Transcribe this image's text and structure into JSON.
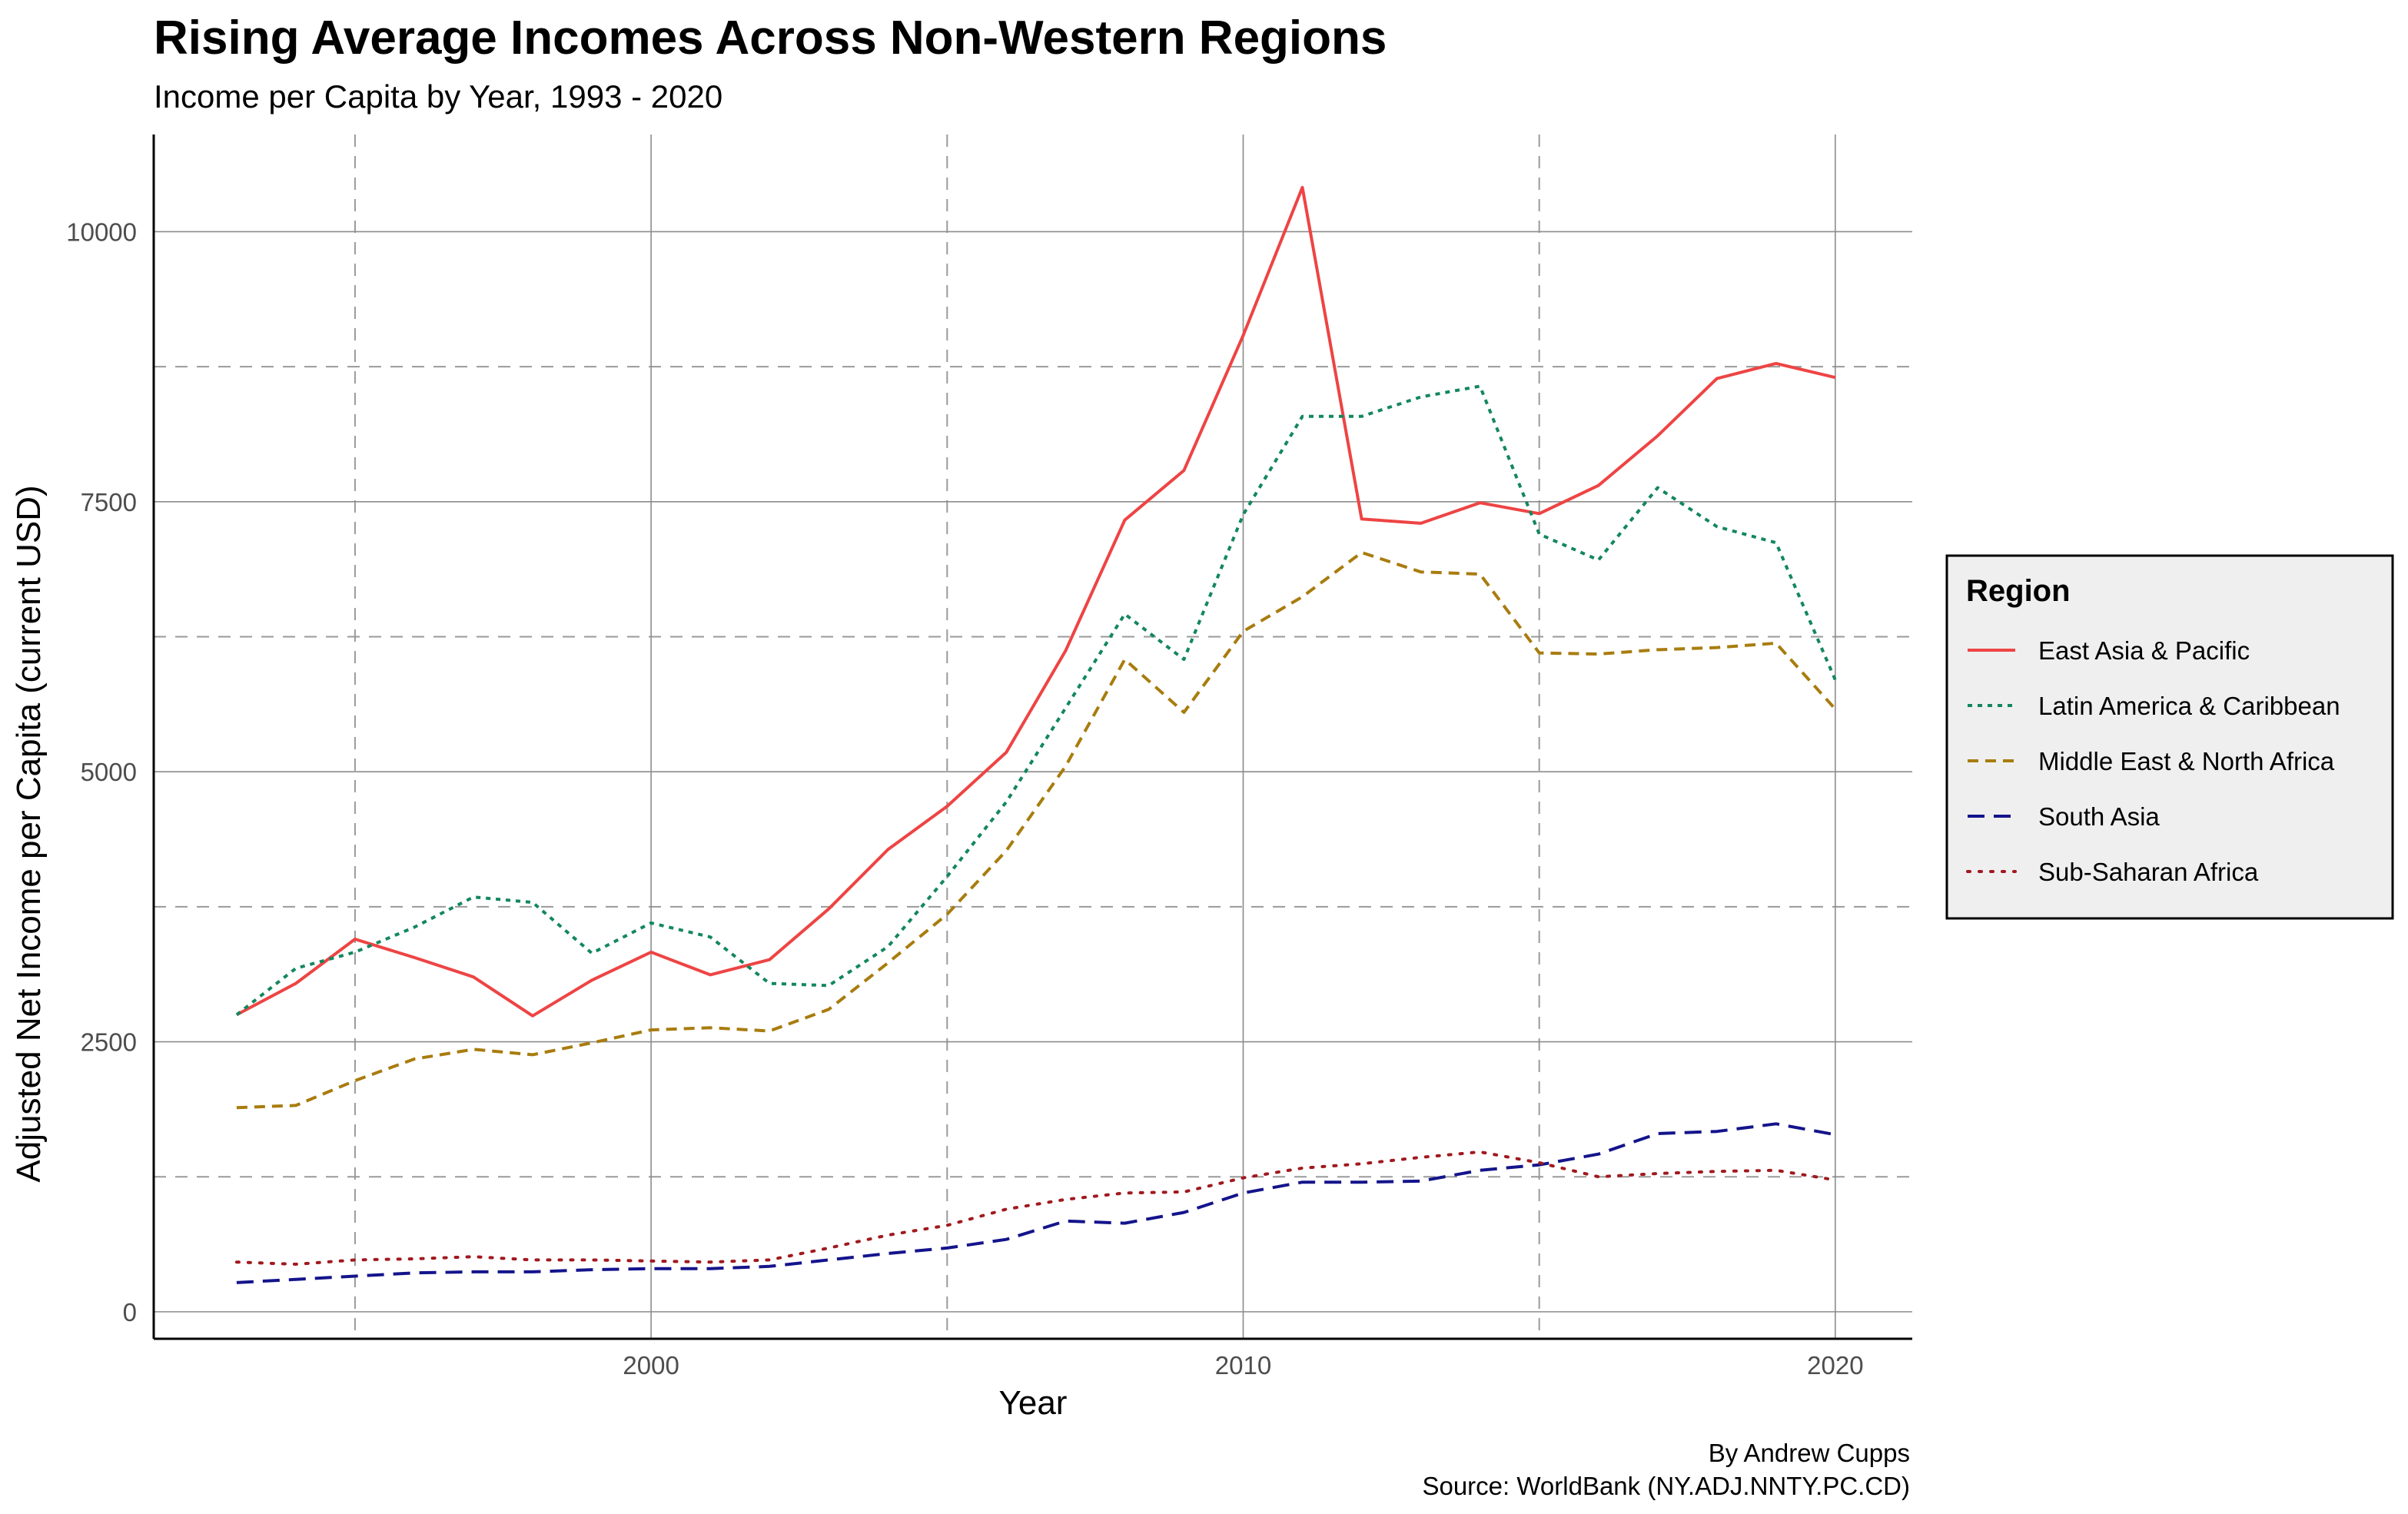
{
  "title": "Rising Average Incomes Across Non-Western Regions",
  "subtitle": "Income per Capita by Year, 1993 - 2020",
  "caption_author": "By Andrew Cupps",
  "caption_source": "Source: WorldBank (NY.ADJ.NNTY.PC.CD)",
  "chart_data": {
    "type": "line",
    "xlabel": "Year",
    "ylabel": "Adjusted Net Income per Capita (current USD)",
    "xlim": [
      1991.6,
      2021.3
    ],
    "ylim": [
      -250,
      10900
    ],
    "x_ticks": [
      2000,
      2010,
      2020
    ],
    "y_ticks": [
      0,
      2500,
      5000,
      7500,
      10000
    ],
    "x_minor_ticks": [
      1995,
      2005,
      2015
    ],
    "y_minor_ticks": [
      1250,
      3750,
      6250,
      8750
    ],
    "grid": true,
    "legend_title": "Region",
    "legend_position": "right",
    "x": [
      1993,
      1994,
      1995,
      1996,
      1997,
      1998,
      1999,
      2000,
      2001,
      2002,
      2003,
      2004,
      2005,
      2006,
      2007,
      2008,
      2009,
      2010,
      2011,
      2012,
      2013,
      2014,
      2015,
      2016,
      2017,
      2018,
      2019,
      2020
    ],
    "series": [
      {
        "name": "East Asia & Pacific",
        "color": "#ee4444",
        "dash": "solid",
        "values": [
          2750,
          3040,
          3450,
          3280,
          3100,
          2740,
          3070,
          3330,
          3120,
          3260,
          3730,
          4280,
          4680,
          5180,
          6120,
          7330,
          7790,
          9040,
          10410,
          7340,
          7300,
          7490,
          7390,
          7650,
          8110,
          8640,
          8780,
          8650
        ]
      },
      {
        "name": "Latin America & Caribbean",
        "color": "#13875e",
        "dash": "dot",
        "values": [
          2750,
          3180,
          3330,
          3560,
          3840,
          3790,
          3320,
          3600,
          3470,
          3040,
          3020,
          3380,
          4030,
          4720,
          5590,
          6460,
          6040,
          7380,
          8290,
          8290,
          8470,
          8570,
          7200,
          6960,
          7630,
          7270,
          7120,
          5850
        ]
      },
      {
        "name": "Middle East & North Africa",
        "color": "#a87c0e",
        "dash": "dash",
        "values": [
          1890,
          1910,
          2140,
          2340,
          2430,
          2380,
          2490,
          2610,
          2630,
          2600,
          2800,
          3230,
          3680,
          4270,
          5050,
          6040,
          5550,
          6300,
          6620,
          7030,
          6850,
          6830,
          6100,
          6090,
          6130,
          6150,
          6190,
          5580
        ]
      },
      {
        "name": "South Asia",
        "color": "#14148c",
        "dash": "longdash",
        "values": [
          270,
          300,
          330,
          360,
          370,
          370,
          390,
          400,
          400,
          420,
          480,
          540,
          590,
          670,
          840,
          820,
          920,
          1100,
          1200,
          1200,
          1210,
          1310,
          1360,
          1460,
          1650,
          1670,
          1740,
          1640
        ]
      },
      {
        "name": "Sub-Saharan Africa",
        "color": "#a0191e",
        "dash": "dotted",
        "values": [
          460,
          440,
          480,
          490,
          510,
          480,
          480,
          470,
          460,
          480,
          590,
          710,
          800,
          950,
          1040,
          1100,
          1110,
          1240,
          1330,
          1370,
          1430,
          1480,
          1380,
          1250,
          1280,
          1300,
          1310,
          1220
        ]
      }
    ]
  }
}
